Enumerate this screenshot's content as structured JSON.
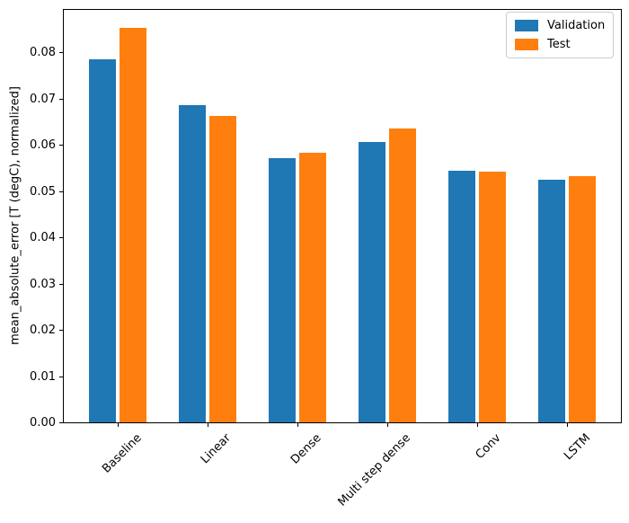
{
  "chart_data": {
    "type": "bar",
    "title": "",
    "xlabel": "",
    "ylabel": "mean_absolute_error [T (degC), normalized]",
    "categories": [
      "Baseline",
      "Linear",
      "Dense",
      "Multi step dense",
      "Conv",
      "LSTM"
    ],
    "series": [
      {
        "name": "Validation",
        "color": "#1f77b4",
        "values": [
          0.0785,
          0.0687,
          0.0572,
          0.0607,
          0.0545,
          0.0524
        ]
      },
      {
        "name": "Test",
        "color": "#ff7f0e",
        "values": [
          0.0853,
          0.0663,
          0.0583,
          0.0635,
          0.0543,
          0.0533
        ]
      }
    ],
    "ylim": [
      0,
      0.0896
    ],
    "ytick_values": [
      0.0,
      0.01,
      0.02,
      0.03,
      0.04,
      0.05,
      0.06,
      0.07,
      0.08
    ],
    "ytick_labels": [
      "0.00",
      "0.01",
      "0.02",
      "0.03",
      "0.04",
      "0.05",
      "0.06",
      "0.07",
      "0.08"
    ],
    "xtick_rotation_deg": 45,
    "grid": false,
    "legend": {
      "position": "upper right",
      "entries": [
        "Validation",
        "Test"
      ]
    },
    "axes": {
      "spine_color": "#000000",
      "legend_border_color": "#cccccc",
      "background_color": "#ffffff"
    }
  }
}
